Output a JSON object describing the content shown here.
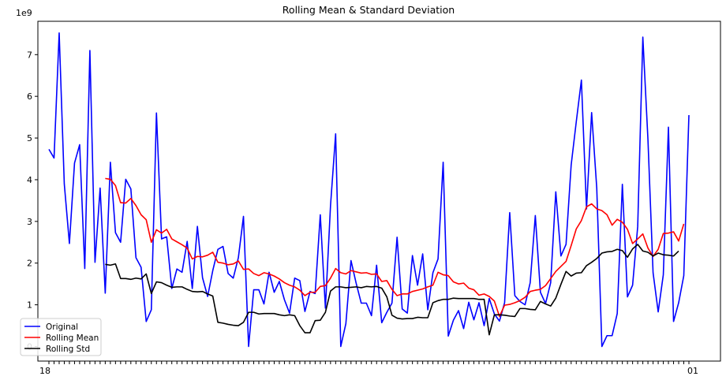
{
  "chart_data": {
    "type": "line",
    "title": "Rolling Mean & Standard Deviation",
    "y_offset_label": "1e9",
    "xlabel": "",
    "ylabel": "",
    "ylim": [
      -0.35,
      7.8
    ],
    "yticks": [
      0,
      1,
      2,
      3,
      4,
      5,
      6,
      7
    ],
    "x_tick_first": "18",
    "x_tick_last": "01",
    "grid": false,
    "legend_position": "lower-left",
    "series": [
      {
        "name": "Original",
        "color": "#0000ff",
        "values": [
          4.73,
          4.52,
          7.52,
          3.9,
          2.47,
          4.4,
          4.84,
          1.87,
          7.1,
          2.02,
          3.8,
          1.28,
          4.42,
          2.73,
          2.5,
          4.01,
          3.78,
          2.13,
          1.9,
          0.6,
          0.88,
          5.6,
          2.58,
          2.63,
          1.39,
          1.86,
          1.78,
          2.52,
          1.39,
          2.88,
          1.65,
          1.2,
          1.82,
          2.33,
          2.4,
          1.75,
          1.64,
          2.13,
          3.12,
          0.0,
          1.36,
          1.36,
          1.02,
          1.78,
          1.3,
          1.56,
          1.12,
          0.8,
          1.64,
          1.58,
          0.84,
          1.32,
          1.27,
          3.16,
          0.92,
          3.38,
          5.1,
          0.0,
          0.55,
          2.06,
          1.52,
          1.04,
          1.04,
          0.74,
          1.95,
          0.57,
          0.82,
          1.04,
          2.62,
          0.9,
          0.8,
          2.18,
          1.47,
          2.22,
          0.88,
          1.77,
          2.1,
          4.42,
          0.25,
          0.63,
          0.86,
          0.43,
          1.06,
          0.64,
          1.05,
          0.5,
          1.15,
          0.78,
          0.61,
          1.05,
          3.21,
          1.22,
          1.08,
          1.0,
          1.53,
          3.14,
          1.3,
          1.03,
          1.53,
          3.71,
          2.17,
          2.45,
          4.35,
          5.39,
          6.39,
          3.3,
          5.61,
          3.8,
          0.0,
          0.26,
          0.26,
          0.79,
          3.89,
          1.19,
          1.47,
          2.88,
          7.42,
          4.96,
          1.77,
          0.83,
          1.72,
          5.26,
          0.6,
          1.05,
          1.7,
          5.55
        ]
      },
      {
        "name": "Rolling Mean",
        "color": "#ff0000",
        "start_index": 11,
        "values": [
          4.03,
          4.01,
          3.86,
          3.45,
          3.44,
          3.55,
          3.38,
          3.16,
          3.04,
          2.5,
          2.8,
          2.72,
          2.81,
          2.58,
          2.51,
          2.44,
          2.36,
          2.1,
          2.16,
          2.15,
          2.19,
          2.26,
          2.02,
          2.0,
          1.96,
          1.98,
          2.05,
          1.85,
          1.86,
          1.75,
          1.7,
          1.77,
          1.74,
          1.69,
          1.62,
          1.53,
          1.47,
          1.43,
          1.35,
          1.22,
          1.3,
          1.3,
          1.44,
          1.46,
          1.64,
          1.87,
          1.77,
          1.74,
          1.82,
          1.79,
          1.76,
          1.77,
          1.73,
          1.74,
          1.56,
          1.58,
          1.37,
          1.22,
          1.26,
          1.26,
          1.32,
          1.35,
          1.38,
          1.43,
          1.47,
          1.78,
          1.72,
          1.7,
          1.55,
          1.5,
          1.52,
          1.4,
          1.36,
          1.23,
          1.26,
          1.2,
          1.09,
          0.72,
          0.99,
          1.01,
          1.05,
          1.1,
          1.18,
          1.32,
          1.35,
          1.37,
          1.46,
          1.63,
          1.8,
          1.92,
          2.04,
          2.42,
          2.82,
          3.02,
          3.35,
          3.42,
          3.3,
          3.26,
          3.16,
          2.91,
          3.05,
          2.98,
          2.81,
          2.47,
          2.58,
          2.7,
          2.36,
          2.16,
          2.33,
          2.71,
          2.72,
          2.75,
          2.53,
          2.94
        ]
      },
      {
        "name": "Rolling Std",
        "color": "#000000",
        "start_index": 11,
        "values": [
          1.97,
          1.95,
          1.98,
          1.63,
          1.63,
          1.61,
          1.64,
          1.62,
          1.74,
          1.27,
          1.55,
          1.53,
          1.47,
          1.42,
          1.43,
          1.43,
          1.37,
          1.32,
          1.31,
          1.32,
          1.26,
          1.21,
          0.58,
          0.56,
          0.53,
          0.51,
          0.5,
          0.58,
          0.82,
          0.82,
          0.78,
          0.79,
          0.79,
          0.79,
          0.76,
          0.74,
          0.76,
          0.74,
          0.5,
          0.33,
          0.33,
          0.62,
          0.63,
          0.82,
          1.33,
          1.43,
          1.43,
          1.41,
          1.42,
          1.43,
          1.41,
          1.44,
          1.43,
          1.44,
          1.4,
          1.19,
          0.75,
          0.68,
          0.66,
          0.67,
          0.67,
          0.7,
          0.69,
          0.69,
          1.05,
          1.1,
          1.13,
          1.13,
          1.16,
          1.15,
          1.15,
          1.15,
          1.15,
          1.13,
          1.13,
          0.28,
          0.76,
          0.76,
          0.75,
          0.73,
          0.72,
          0.91,
          0.91,
          0.89,
          0.88,
          1.08,
          1.02,
          0.97,
          1.16,
          1.49,
          1.8,
          1.69,
          1.76,
          1.77,
          1.94,
          2.02,
          2.11,
          2.24,
          2.27,
          2.28,
          2.33,
          2.3,
          2.14,
          2.34,
          2.45,
          2.29,
          2.26,
          2.17,
          2.24,
          2.2,
          2.19,
          2.17,
          2.29
        ]
      }
    ]
  }
}
